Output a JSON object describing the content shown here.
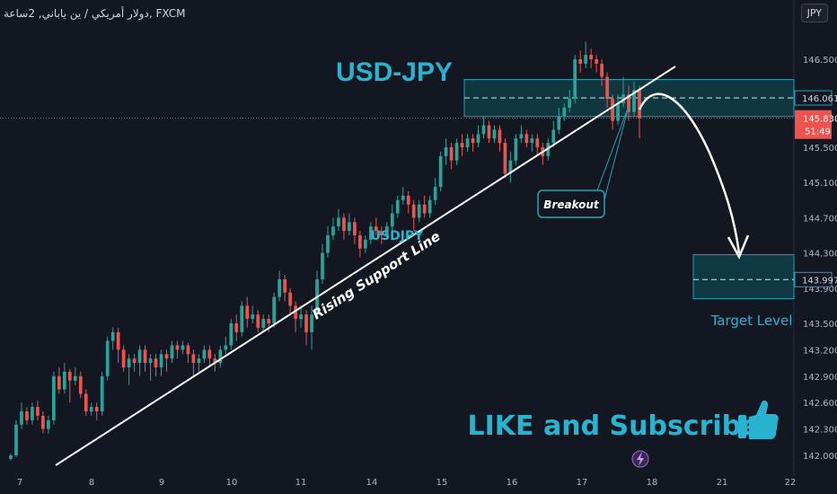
{
  "header": {
    "symbol_text": "دولار أمريكي / ين ياباني, 2ساعة, FXCM",
    "currency_badge": "JPY"
  },
  "colors": {
    "background": "#131722",
    "bull": "#26a69a",
    "bear": "#ef5350",
    "zone": "#0e5058",
    "zone_border": "#1fa2b1",
    "title": "#28b4d0",
    "white": "#ffffff",
    "axis_text": "#b2b5be"
  },
  "chart_data": {
    "type": "candlestick",
    "title": "USD-JPY",
    "ylim": [
      141.95,
      146.75
    ],
    "y_ticks": [
      142.0,
      142.3,
      142.6,
      142.9,
      143.2,
      143.5,
      143.9,
      144.3,
      144.7,
      145.1,
      145.5,
      146.5
    ],
    "x_ticks": [
      "7",
      "8",
      "9",
      "10",
      "11",
      "14",
      "15",
      "16",
      "17",
      "18",
      "21",
      "22"
    ],
    "price_labels": [
      {
        "value": 146.061,
        "text": "146.061",
        "kind": "zone"
      },
      {
        "value": 145.83,
        "text": "145.830",
        "kind": "last"
      },
      {
        "value": 143.997,
        "text": "143.997",
        "kind": "zone"
      }
    ],
    "countdown": "51:49",
    "candles": [
      [
        141.96,
        142.0,
        141.94,
        142.02
      ],
      [
        142.0,
        142.35,
        141.98,
        142.4
      ],
      [
        142.35,
        142.5,
        142.3,
        142.6
      ],
      [
        142.5,
        142.4,
        142.35,
        142.55
      ],
      [
        142.4,
        142.55,
        142.35,
        142.6
      ],
      [
        142.55,
        142.45,
        142.4,
        142.62
      ],
      [
        142.45,
        142.3,
        142.25,
        142.5
      ],
      [
        142.3,
        142.4,
        142.25,
        142.45
      ],
      [
        142.4,
        142.9,
        142.35,
        142.95
      ],
      [
        142.9,
        142.75,
        142.7,
        143.0
      ],
      [
        142.75,
        142.95,
        142.7,
        143.05
      ],
      [
        142.95,
        142.85,
        142.6,
        142.98
      ],
      [
        142.85,
        142.9,
        142.8,
        143.0
      ],
      [
        142.9,
        142.7,
        142.65,
        142.95
      ],
      [
        142.7,
        142.5,
        142.45,
        142.75
      ],
      [
        142.5,
        142.55,
        142.45,
        142.6
      ],
      [
        142.55,
        142.5,
        142.4,
        142.6
      ],
      [
        142.5,
        142.9,
        142.45,
        142.95
      ],
      [
        142.9,
        143.3,
        142.85,
        143.35
      ],
      [
        143.3,
        143.4,
        143.2,
        143.45
      ],
      [
        143.4,
        143.2,
        143.05,
        143.45
      ],
      [
        143.2,
        143.0,
        142.95,
        143.25
      ],
      [
        143.0,
        143.1,
        142.8,
        143.15
      ],
      [
        143.1,
        143.05,
        142.95,
        143.15
      ],
      [
        143.05,
        143.2,
        142.9,
        143.25
      ],
      [
        143.2,
        143.05,
        142.95,
        143.25
      ],
      [
        143.05,
        143.1,
        142.85,
        143.15
      ],
      [
        143.1,
        143.0,
        142.9,
        143.15
      ],
      [
        143.0,
        143.15,
        142.9,
        143.2
      ],
      [
        143.15,
        143.1,
        142.95,
        143.2
      ],
      [
        143.1,
        143.25,
        143.05,
        143.3
      ],
      [
        143.25,
        143.2,
        143.1,
        143.3
      ],
      [
        143.2,
        143.25,
        143.15,
        143.3
      ],
      [
        143.25,
        143.15,
        143.05,
        143.28
      ],
      [
        143.15,
        143.05,
        142.9,
        143.2
      ],
      [
        143.05,
        143.1,
        142.95,
        143.15
      ],
      [
        143.1,
        143.2,
        143.05,
        143.25
      ],
      [
        143.2,
        143.1,
        143.0,
        143.25
      ],
      [
        143.1,
        143.05,
        142.95,
        143.15
      ],
      [
        143.05,
        143.2,
        143.0,
        143.25
      ],
      [
        143.2,
        143.25,
        143.15,
        143.35
      ],
      [
        143.25,
        143.5,
        143.2,
        143.55
      ],
      [
        143.5,
        143.4,
        143.3,
        143.6
      ],
      [
        143.4,
        143.7,
        143.35,
        143.75
      ],
      [
        143.7,
        143.55,
        143.45,
        143.8
      ],
      [
        143.55,
        143.6,
        143.5,
        143.7
      ],
      [
        143.6,
        143.45,
        143.4,
        143.65
      ],
      [
        143.45,
        143.55,
        143.4,
        143.6
      ],
      [
        143.55,
        143.5,
        143.4,
        143.6
      ],
      [
        143.5,
        143.8,
        143.45,
        143.85
      ],
      [
        143.8,
        144.0,
        143.75,
        144.1
      ],
      [
        144.0,
        143.85,
        143.75,
        144.05
      ],
      [
        143.85,
        143.7,
        143.6,
        143.9
      ],
      [
        143.7,
        143.55,
        143.4,
        143.75
      ],
      [
        143.55,
        143.6,
        143.45,
        143.7
      ],
      [
        143.6,
        143.4,
        143.25,
        143.65
      ],
      [
        143.4,
        143.6,
        143.2,
        143.7
      ],
      [
        143.6,
        144.0,
        143.55,
        144.1
      ],
      [
        144.0,
        144.3,
        143.95,
        144.4
      ],
      [
        144.3,
        144.5,
        144.25,
        144.6
      ],
      [
        144.5,
        144.6,
        144.45,
        144.7
      ],
      [
        144.6,
        144.7,
        144.55,
        144.8
      ],
      [
        144.7,
        144.55,
        144.45,
        144.75
      ],
      [
        144.55,
        144.65,
        144.5,
        144.75
      ],
      [
        144.65,
        144.5,
        144.4,
        144.7
      ],
      [
        144.5,
        144.35,
        144.25,
        144.55
      ],
      [
        144.35,
        144.45,
        144.3,
        144.5
      ],
      [
        144.45,
        144.6,
        144.4,
        144.65
      ],
      [
        144.6,
        144.55,
        144.5,
        144.7
      ],
      [
        144.55,
        144.5,
        144.4,
        144.6
      ],
      [
        144.5,
        144.6,
        144.45,
        144.65
      ],
      [
        144.6,
        144.75,
        144.55,
        144.85
      ],
      [
        144.75,
        144.9,
        144.7,
        144.95
      ],
      [
        144.9,
        144.95,
        144.85,
        145.05
      ],
      [
        144.95,
        144.85,
        144.75,
        145.0
      ],
      [
        144.85,
        144.7,
        144.55,
        144.9
      ],
      [
        144.7,
        144.85,
        144.65,
        144.9
      ],
      [
        144.85,
        144.75,
        144.7,
        144.95
      ],
      [
        144.75,
        144.9,
        144.7,
        144.95
      ],
      [
        144.9,
        145.05,
        144.85,
        145.15
      ],
      [
        145.05,
        145.4,
        145.0,
        145.45
      ],
      [
        145.4,
        145.5,
        145.3,
        145.6
      ],
      [
        145.5,
        145.35,
        145.25,
        145.55
      ],
      [
        145.35,
        145.55,
        145.3,
        145.6
      ],
      [
        145.55,
        145.5,
        145.4,
        145.65
      ],
      [
        145.5,
        145.6,
        145.45,
        145.65
      ],
      [
        145.6,
        145.55,
        145.45,
        145.65
      ],
      [
        145.55,
        145.65,
        145.5,
        145.75
      ],
      [
        145.65,
        145.75,
        145.6,
        145.85
      ],
      [
        145.75,
        145.6,
        145.55,
        145.8
      ],
      [
        145.6,
        145.7,
        145.55,
        145.75
      ],
      [
        145.7,
        145.55,
        145.45,
        145.75
      ],
      [
        145.55,
        145.2,
        145.15,
        145.6
      ],
      [
        145.2,
        145.35,
        145.1,
        145.45
      ],
      [
        145.35,
        145.6,
        145.3,
        145.65
      ],
      [
        145.6,
        145.65,
        145.55,
        145.75
      ],
      [
        145.65,
        145.55,
        145.5,
        145.7
      ],
      [
        145.55,
        145.6,
        145.45,
        145.65
      ],
      [
        145.6,
        145.5,
        145.4,
        145.65
      ],
      [
        145.5,
        145.4,
        145.3,
        145.55
      ],
      [
        145.4,
        145.55,
        145.35,
        145.6
      ],
      [
        145.55,
        145.7,
        145.5,
        145.8
      ],
      [
        145.7,
        145.85,
        145.65,
        145.95
      ],
      [
        145.85,
        145.95,
        145.8,
        146.0
      ],
      [
        145.95,
        146.05,
        145.9,
        146.15
      ],
      [
        146.05,
        146.5,
        146.0,
        146.55
      ],
      [
        146.5,
        146.45,
        146.35,
        146.6
      ],
      [
        146.45,
        146.55,
        146.4,
        146.7
      ],
      [
        146.55,
        146.5,
        146.4,
        146.62
      ],
      [
        146.5,
        146.45,
        146.35,
        146.55
      ],
      [
        146.45,
        146.3,
        146.2,
        146.5
      ],
      [
        146.3,
        146.05,
        145.95,
        146.35
      ],
      [
        146.05,
        145.8,
        145.7,
        146.1
      ],
      [
        145.8,
        146.0,
        145.75,
        146.1
      ],
      [
        146.0,
        146.1,
        145.95,
        146.3
      ],
      [
        146.1,
        145.9,
        145.8,
        146.2
      ],
      [
        145.9,
        146.15,
        145.85,
        146.25
      ],
      [
        146.15,
        145.83,
        145.6,
        146.2
      ]
    ]
  },
  "annotations": {
    "title": "USD-JPY",
    "symbol_label": "USDJPY",
    "support_line_label": "Rising Support Line",
    "breakout_label": "Breakout",
    "target_label": "Target Level",
    "cta_text": "LIKE and Subscribe",
    "thumbs_icon": "thumbs-up-icon",
    "bolt_icon": "lightning-icon"
  }
}
